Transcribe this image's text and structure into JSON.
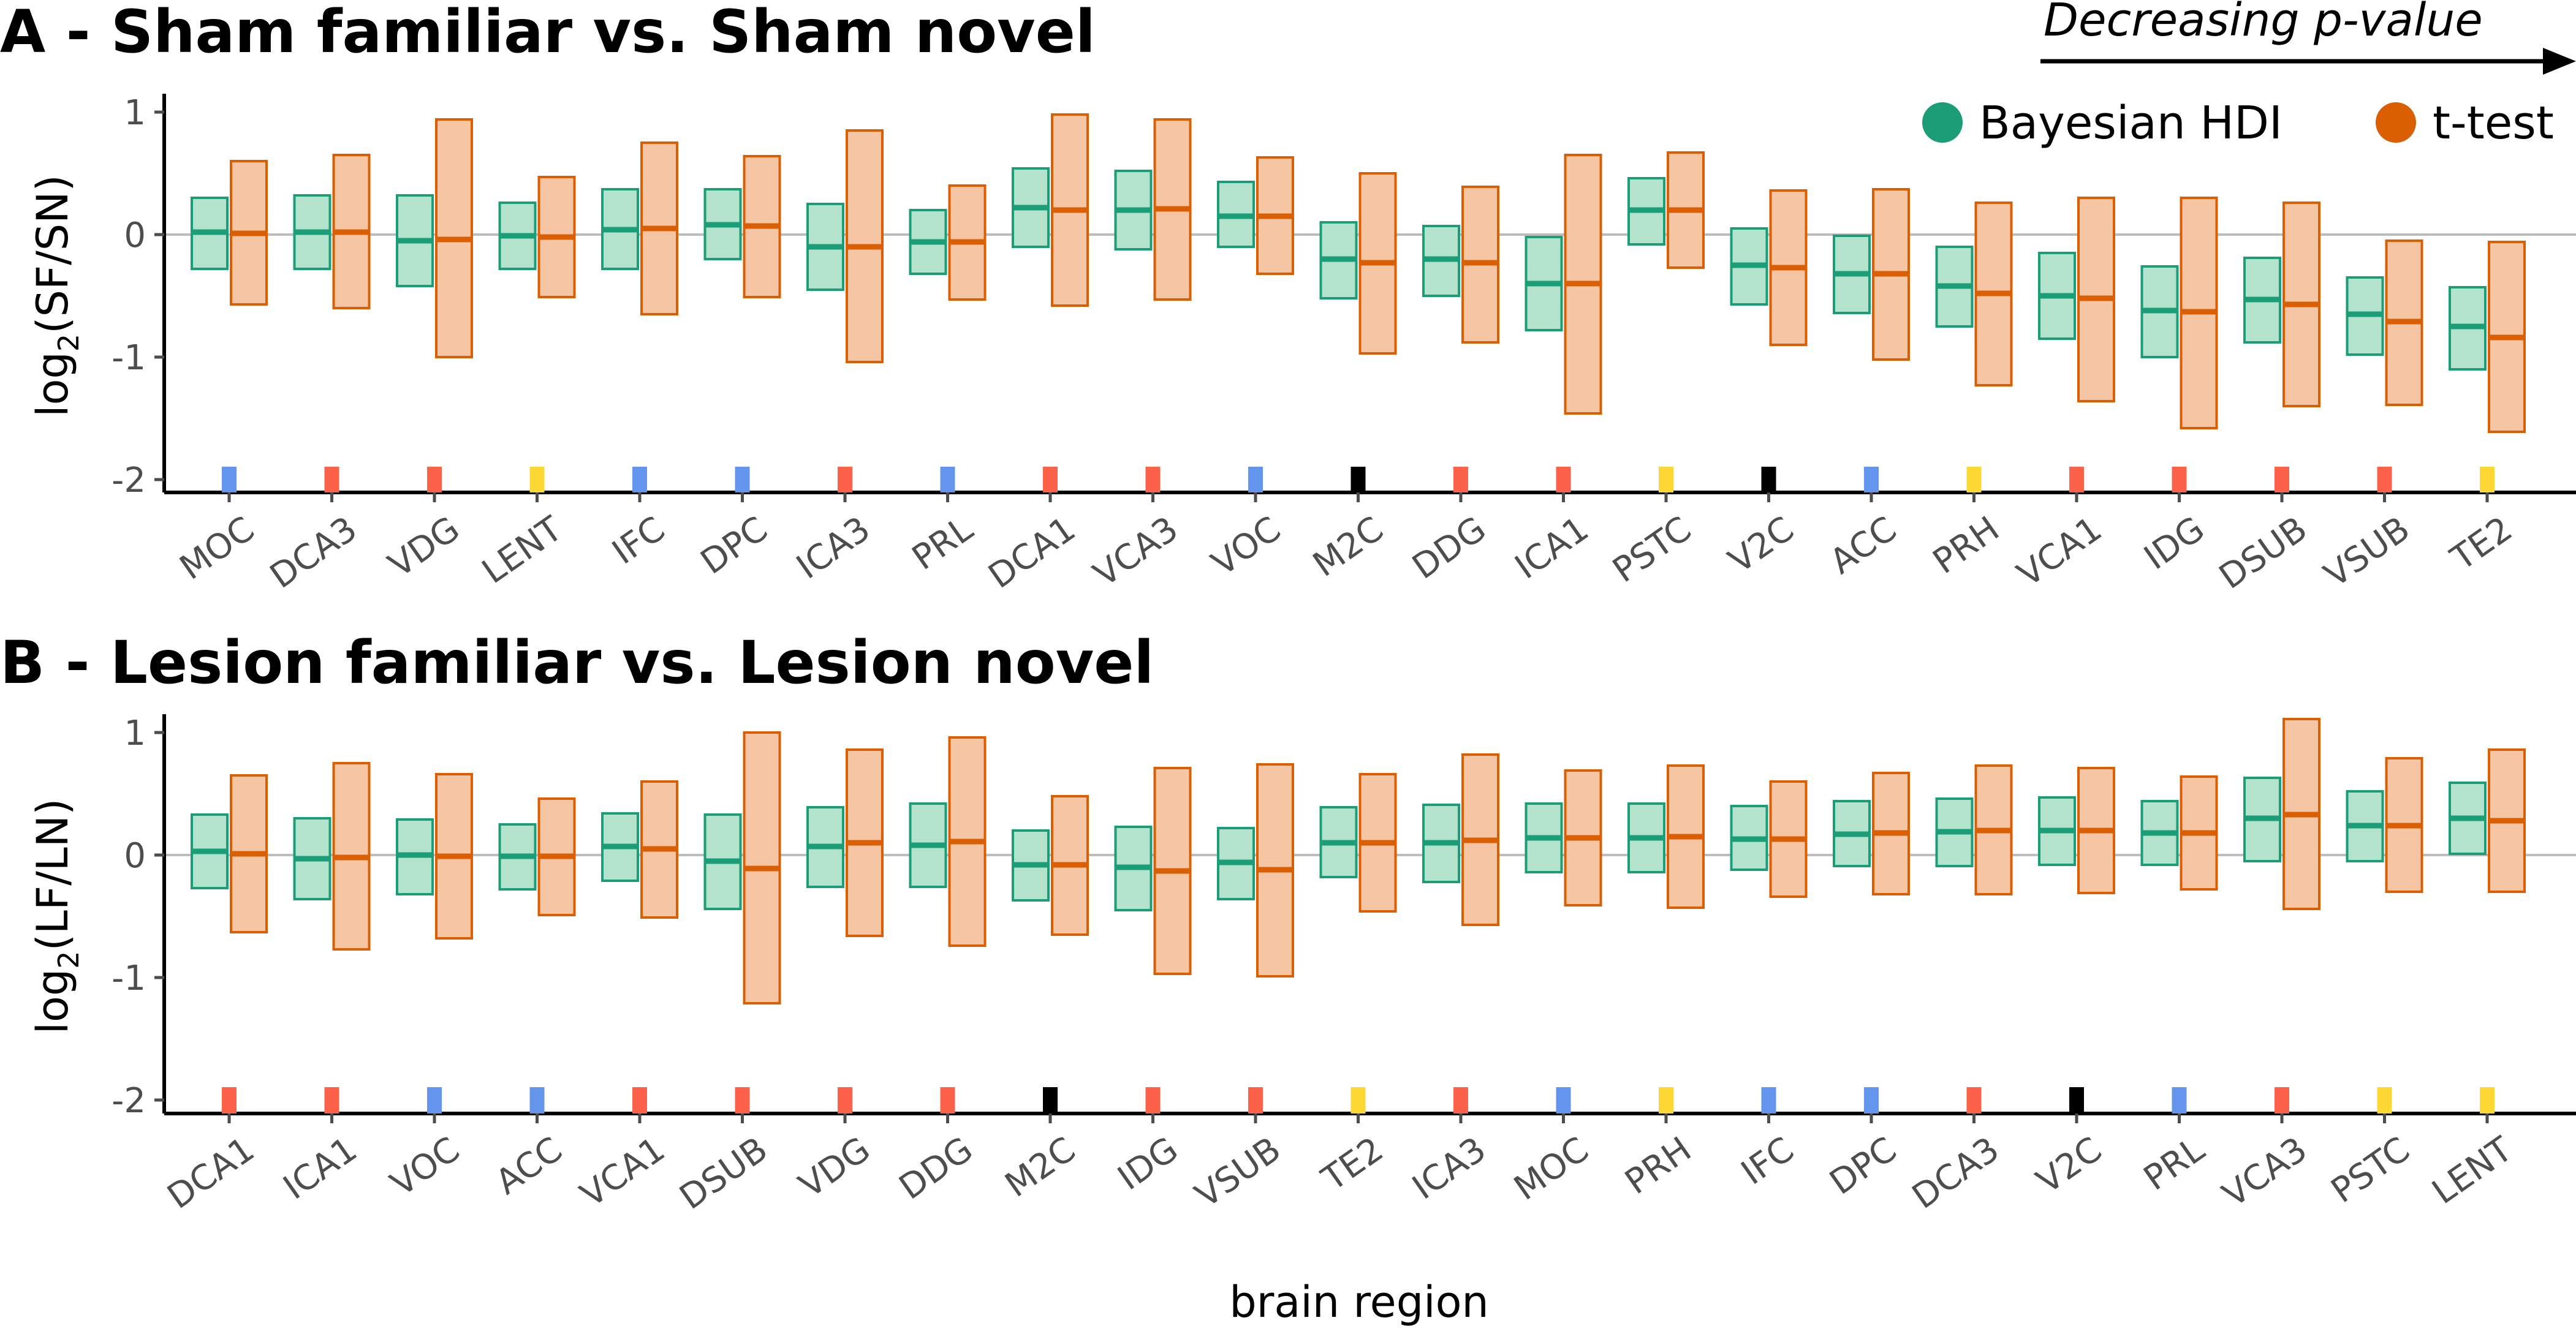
{
  "colors": {
    "bayes_fill": "#b3e2cd",
    "bayes_line": "#1b9e77",
    "ttest_fill": "#f6c6a4",
    "ttest_line": "#d95f02",
    "zero_line": "#bdbdbd",
    "region_colors": {
      "red": "#fb6249",
      "blue": "#6495ed",
      "yellow": "#fdd835",
      "black": "#000000"
    }
  },
  "arrow_label": "Decreasing p-value",
  "legend": [
    {
      "label": "Bayesian HDI",
      "color": "#1b9e77"
    },
    {
      "label": "t-test",
      "color": "#d95f02"
    }
  ],
  "xlabel": "brain region",
  "chart_data": [
    {
      "type": "interval",
      "title": "A - Sham familiar vs. Sham novel",
      "ylabel_main": "log",
      "ylabel_sub": "2",
      "ylabel_expr": "(SF/SN)",
      "ylim": [
        -2,
        1
      ],
      "yticks": [
        "1",
        "0",
        "-1",
        "-2"
      ],
      "categories": [
        "MOC",
        "DCA3",
        "VDG",
        "LENT",
        "IFC",
        "DPC",
        "ICA3",
        "PRL",
        "DCA1",
        "VCA3",
        "VOC",
        "M2C",
        "DDG",
        "ICA1",
        "PSTC",
        "V2C",
        "ACC",
        "PRH",
        "VCA1",
        "IDG",
        "DSUB",
        "VSUB",
        "TE2"
      ],
      "region_color": [
        "blue",
        "red",
        "red",
        "yellow",
        "blue",
        "blue",
        "red",
        "blue",
        "red",
        "red",
        "blue",
        "black",
        "red",
        "red",
        "yellow",
        "black",
        "blue",
        "yellow",
        "red",
        "red",
        "red",
        "red",
        "yellow"
      ],
      "series": [
        {
          "name": "Bayesian HDI",
          "center": [
            0.02,
            0.02,
            -0.05,
            -0.01,
            0.04,
            0.08,
            -0.1,
            -0.06,
            0.22,
            0.2,
            0.15,
            -0.2,
            -0.2,
            -0.4,
            0.2,
            -0.25,
            -0.32,
            -0.42,
            -0.5,
            -0.62,
            -0.53,
            -0.65,
            -0.75
          ],
          "low": [
            -0.28,
            -0.28,
            -0.42,
            -0.28,
            -0.28,
            -0.2,
            -0.45,
            -0.32,
            -0.1,
            -0.12,
            -0.1,
            -0.52,
            -0.5,
            -0.78,
            -0.08,
            -0.57,
            -0.64,
            -0.75,
            -0.85,
            -1.0,
            -0.88,
            -0.98,
            -1.1
          ],
          "high": [
            0.3,
            0.32,
            0.32,
            0.26,
            0.37,
            0.37,
            0.25,
            0.2,
            0.54,
            0.52,
            0.43,
            0.1,
            0.07,
            -0.02,
            0.46,
            0.05,
            -0.01,
            -0.1,
            -0.15,
            -0.26,
            -0.19,
            -0.35,
            -0.43
          ]
        },
        {
          "name": "t-test",
          "center": [
            0.01,
            0.02,
            -0.04,
            -0.02,
            0.05,
            0.07,
            -0.1,
            -0.06,
            0.2,
            0.21,
            0.15,
            -0.23,
            -0.23,
            -0.4,
            0.2,
            -0.27,
            -0.32,
            -0.48,
            -0.52,
            -0.63,
            -0.57,
            -0.71,
            -0.84
          ],
          "low": [
            -0.57,
            -0.6,
            -1.0,
            -0.51,
            -0.65,
            -0.51,
            -1.04,
            -0.53,
            -0.58,
            -0.53,
            -0.32,
            -0.97,
            -0.88,
            -1.46,
            -0.27,
            -0.9,
            -1.02,
            -1.23,
            -1.36,
            -1.58,
            -1.4,
            -1.39,
            -1.61
          ],
          "high": [
            0.6,
            0.65,
            0.94,
            0.47,
            0.75,
            0.64,
            0.85,
            0.4,
            0.98,
            0.94,
            0.63,
            0.5,
            0.39,
            0.65,
            0.67,
            0.36,
            0.37,
            0.26,
            0.3,
            0.3,
            0.26,
            -0.05,
            -0.06
          ]
        }
      ]
    },
    {
      "type": "interval",
      "title": "B - Lesion familiar vs. Lesion novel",
      "ylabel_main": "log",
      "ylabel_sub": "2",
      "ylabel_expr": "(LF/LN)",
      "ylim": [
        -2,
        1
      ],
      "yticks": [
        "1",
        "0",
        "-1",
        "-2"
      ],
      "categories": [
        "DCA1",
        "ICA1",
        "VOC",
        "ACC",
        "VCA1",
        "DSUB",
        "VDG",
        "DDG",
        "M2C",
        "IDG",
        "VSUB",
        "TE2",
        "ICA3",
        "MOC",
        "PRH",
        "IFC",
        "DPC",
        "DCA3",
        "V2C",
        "PRL",
        "VCA3",
        "PSTC",
        "LENT"
      ],
      "region_color": [
        "red",
        "red",
        "blue",
        "blue",
        "red",
        "red",
        "red",
        "red",
        "black",
        "red",
        "red",
        "yellow",
        "red",
        "blue",
        "yellow",
        "blue",
        "blue",
        "red",
        "black",
        "blue",
        "red",
        "yellow",
        "yellow"
      ],
      "series": [
        {
          "name": "Bayesian HDI",
          "center": [
            0.03,
            -0.03,
            0.0,
            -0.01,
            0.07,
            -0.05,
            0.07,
            0.08,
            -0.08,
            -0.1,
            -0.06,
            0.1,
            0.1,
            0.14,
            0.14,
            0.13,
            0.17,
            0.19,
            0.2,
            0.18,
            0.3,
            0.24,
            0.3
          ],
          "low": [
            -0.27,
            -0.36,
            -0.32,
            -0.28,
            -0.21,
            -0.44,
            -0.26,
            -0.26,
            -0.37,
            -0.45,
            -0.36,
            -0.18,
            -0.22,
            -0.14,
            -0.14,
            -0.12,
            -0.09,
            -0.09,
            -0.08,
            -0.08,
            -0.05,
            -0.05,
            0.01
          ],
          "high": [
            0.33,
            0.3,
            0.29,
            0.25,
            0.34,
            0.33,
            0.39,
            0.42,
            0.2,
            0.23,
            0.22,
            0.39,
            0.41,
            0.42,
            0.42,
            0.4,
            0.44,
            0.46,
            0.47,
            0.44,
            0.63,
            0.52,
            0.59
          ]
        },
        {
          "name": "t-test",
          "center": [
            0.01,
            -0.02,
            -0.01,
            -0.01,
            0.05,
            -0.11,
            0.1,
            0.11,
            -0.08,
            -0.13,
            -0.12,
            0.1,
            0.12,
            0.14,
            0.15,
            0.13,
            0.18,
            0.2,
            0.2,
            0.18,
            0.33,
            0.24,
            0.28
          ],
          "low": [
            -0.63,
            -0.77,
            -0.68,
            -0.49,
            -0.51,
            -1.21,
            -0.66,
            -0.74,
            -0.65,
            -0.97,
            -0.99,
            -0.46,
            -0.57,
            -0.41,
            -0.43,
            -0.34,
            -0.32,
            -0.32,
            -0.31,
            -0.28,
            -0.44,
            -0.3,
            -0.3
          ],
          "high": [
            0.65,
            0.75,
            0.66,
            0.46,
            0.6,
            1.0,
            0.86,
            0.96,
            0.48,
            0.71,
            0.74,
            0.66,
            0.82,
            0.69,
            0.73,
            0.6,
            0.67,
            0.73,
            0.71,
            0.64,
            1.11,
            0.79,
            0.86
          ]
        }
      ]
    }
  ]
}
